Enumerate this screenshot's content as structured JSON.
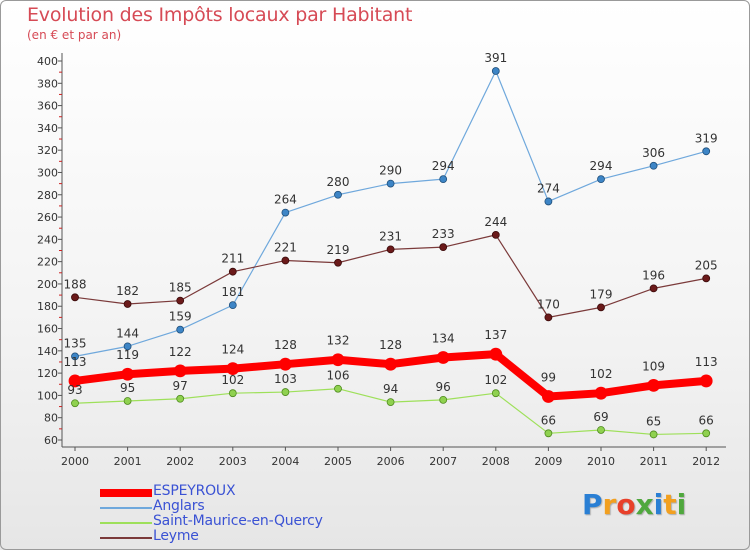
{
  "chart_data": {
    "type": "line",
    "title": "Evolution des Impôts locaux par Habitant",
    "subtitle": "(en € et par an)",
    "xlabel": "",
    "ylabel": "",
    "categories": [
      "2000",
      "2001",
      "2002",
      "2003",
      "2004",
      "2005",
      "2006",
      "2007",
      "2008",
      "2009",
      "2010",
      "2011",
      "2012"
    ],
    "ylim": [
      60,
      400
    ],
    "yticks": [
      60,
      80,
      100,
      120,
      140,
      160,
      180,
      200,
      220,
      240,
      260,
      280,
      300,
      320,
      340,
      360,
      380,
      400
    ],
    "grid": false,
    "legend_position": "bottom-left",
    "series": [
      {
        "name": "ESPEYROUX",
        "color": "#ff0000",
        "values": [
          113,
          119,
          122,
          124,
          128,
          132,
          128,
          134,
          137,
          99,
          102,
          109,
          113
        ]
      },
      {
        "name": "Anglars",
        "color": "#5b9bd5",
        "values": [
          135,
          144,
          159,
          181,
          264,
          280,
          290,
          294,
          391,
          274,
          294,
          306,
          319
        ]
      },
      {
        "name": "Saint-Maurice-en-Quercy",
        "color": "#8fd14f",
        "values": [
          93,
          95,
          97,
          102,
          103,
          106,
          94,
          96,
          102,
          66,
          69,
          65,
          66
        ]
      },
      {
        "name": "Leyme",
        "color": "#7b1f1f",
        "values": [
          188,
          182,
          185,
          211,
          221,
          219,
          231,
          233,
          244,
          170,
          179,
          196,
          205
        ]
      }
    ]
  },
  "logo": {
    "text": "Proxiti",
    "letters": [
      "P",
      "r",
      "o",
      "x",
      "i",
      "t",
      "i"
    ],
    "colors": [
      "#2a7fd4",
      "#f2a020",
      "#e8402a",
      "#4fa83d",
      "#2a7fd4",
      "#f2a020",
      "#4fa83d"
    ]
  }
}
